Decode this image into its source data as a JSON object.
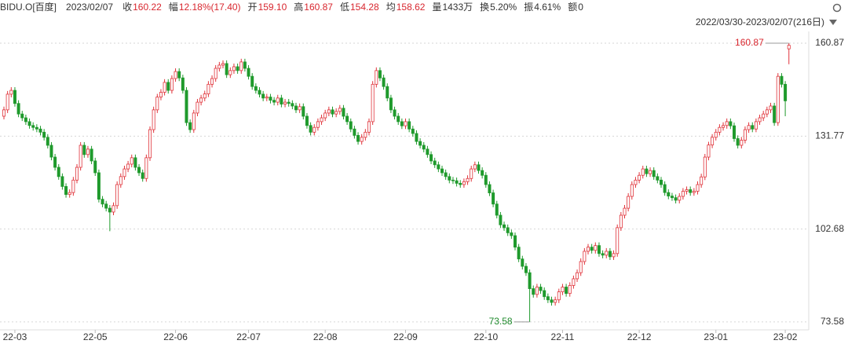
{
  "header": {
    "symbol": "BIDU.O[百度]",
    "date": "2023/02/07",
    "fields": [
      {
        "label": "收",
        "value": "160.22"
      },
      {
        "label": "幅",
        "value": "12.18%(17.40)"
      },
      {
        "label": "开",
        "value": "159.10"
      },
      {
        "label": "高",
        "value": "160.87"
      },
      {
        "label": "低",
        "value": "154.28"
      },
      {
        "label": "均",
        "value": "158.62"
      },
      {
        "label": "量",
        "value": "1433万"
      },
      {
        "label": "换",
        "value": "5.20%"
      },
      {
        "label": "振",
        "value": "4.61%"
      },
      {
        "label": "额",
        "value": "0"
      }
    ]
  },
  "chart_data": {
    "type": "candlestick",
    "subtitle": "2022/03/30-2023/02/07(216日)",
    "up_color": "#e0333a",
    "down_color": "#1f9a2c",
    "ylim": [
      71.1,
      164.56
    ],
    "yticks": [
      160.87,
      131.77,
      102.68,
      73.58
    ],
    "grid": true,
    "xticks": [
      {
        "value": 3,
        "label": "22-03"
      },
      {
        "value": 25,
        "label": "22-05"
      },
      {
        "value": 47,
        "label": "22-06"
      },
      {
        "value": 67,
        "label": "22-07"
      },
      {
        "value": 88,
        "label": "22-08"
      },
      {
        "value": 110,
        "label": "22-09"
      },
      {
        "value": 132,
        "label": "22-10"
      },
      {
        "value": 153,
        "label": "22-11"
      },
      {
        "value": 174,
        "label": "22-12"
      },
      {
        "value": 195,
        "label": "23-01"
      },
      {
        "value": 214,
        "label": "23-02"
      }
    ],
    "open": [
      138.0,
      140.0,
      144.9,
      146.1,
      142.0,
      138.7,
      137.5,
      136.3,
      135.1,
      134.5,
      134.0,
      133.0,
      131.4,
      128.9,
      125.2,
      122.0,
      119.1,
      116.0,
      113.5,
      114.1,
      118.0,
      122.0,
      128.9,
      126.0,
      127.7,
      124.0,
      120.3,
      112.0,
      110.5,
      109.2,
      108.0,
      110.0,
      116.6,
      119.1,
      121.5,
      123.0,
      125.0,
      122.0,
      120.3,
      118.5,
      125.0,
      133.8,
      140.0,
      144.0,
      145.5,
      148.6,
      146.1,
      149.8,
      152.0,
      150.0,
      146.1,
      136.0,
      133.8,
      139.0,
      142.4,
      143.7,
      145.0,
      148.0,
      149.8,
      153.0,
      154.0,
      154.5,
      151.0,
      152.3,
      153.5,
      152.3,
      155.0,
      153.0,
      150.5,
      147.3,
      146.1,
      144.9,
      143.7,
      144.0,
      143.0,
      142.4,
      143.7,
      141.8,
      142.4,
      142.0,
      141.2,
      140.0,
      141.0,
      138.0,
      135.1,
      133.0,
      134.5,
      136.3,
      137.5,
      139.0,
      140.0,
      138.7,
      139.5,
      140.5,
      138.0,
      136.3,
      134.0,
      132.0,
      130.1,
      131.4,
      133.0,
      136.3,
      148.0,
      152.3,
      150.0,
      147.3,
      143.7,
      140.0,
      138.0,
      136.3,
      135.0,
      136.3,
      134.0,
      132.6,
      130.1,
      128.9,
      127.7,
      126.0,
      124.0,
      122.8,
      121.5,
      120.3,
      119.1,
      118.0,
      117.8,
      117.0,
      116.6,
      117.5,
      118.5,
      121.5,
      122.8,
      121.0,
      119.5,
      116.6,
      114.0,
      110.5,
      107.0,
      104.0,
      103.1,
      101.5,
      100.6,
      97.0,
      93.3,
      91.0,
      89.0,
      84.0,
      82.2,
      84.5,
      83.4,
      81.5,
      80.5,
      79.7,
      80.5,
      83.0,
      84.5,
      82.5,
      85.0,
      87.1,
      89.0,
      92.5,
      95.7,
      97.0,
      96.0,
      97.5,
      95.0,
      94.5,
      95.7,
      94.0,
      95.0,
      103.1,
      107.0,
      109.2,
      112.9,
      116.6,
      118.0,
      119.5,
      121.5,
      120.0,
      121.0,
      119.1,
      118.0,
      116.6,
      114.1,
      113.0,
      112.5,
      111.7,
      112.9,
      114.5,
      115.0,
      114.1,
      114.5,
      116.6,
      119.0,
      125.2,
      129.0,
      131.4,
      133.0,
      134.5,
      135.1,
      136.3,
      135.0,
      131.0,
      128.9,
      130.5,
      133.8,
      135.1,
      134.0,
      136.3,
      137.5,
      138.7,
      140.0,
      141.2,
      136.0,
      150.5,
      148.0,
      159.1
    ],
    "high": [
      141.0,
      145.9,
      147.1,
      147.1,
      143.0,
      139.7,
      138.5,
      137.3,
      136.1,
      135.5,
      135.0,
      134.0,
      132.4,
      129.9,
      126.2,
      123.0,
      120.1,
      117.0,
      115.1,
      119.0,
      123.0,
      129.9,
      129.9,
      128.7,
      128.7,
      125.0,
      121.3,
      113.0,
      111.5,
      110.2,
      111.0,
      117.6,
      120.1,
      122.5,
      124.0,
      126.0,
      126.0,
      123.0,
      121.3,
      126.0,
      134.8,
      141.0,
      145.0,
      146.5,
      149.6,
      149.6,
      150.8,
      153.0,
      153.0,
      151.0,
      147.1,
      137.0,
      140.0,
      143.4,
      144.7,
      146.0,
      149.0,
      150.8,
      154.0,
      155.0,
      155.5,
      155.5,
      153.3,
      154.5,
      154.5,
      156.0,
      156.0,
      154.0,
      151.5,
      148.3,
      147.1,
      145.9,
      145.0,
      145.0,
      144.0,
      144.7,
      144.7,
      143.4,
      143.4,
      143.0,
      142.2,
      142.0,
      142.0,
      139.0,
      136.1,
      135.5,
      137.3,
      138.5,
      140.0,
      141.0,
      141.0,
      140.5,
      141.5,
      141.5,
      139.0,
      137.3,
      135.0,
      133.0,
      132.4,
      134.0,
      137.3,
      149.0,
      153.3,
      153.3,
      151.0,
      148.3,
      144.7,
      141.0,
      139.0,
      137.3,
      137.3,
      137.3,
      135.0,
      133.6,
      131.1,
      129.9,
      128.7,
      127.0,
      125.0,
      123.8,
      122.5,
      121.3,
      120.1,
      119.0,
      118.8,
      118.0,
      118.5,
      119.5,
      122.5,
      123.8,
      123.8,
      122.0,
      120.5,
      117.6,
      115.0,
      111.5,
      108.0,
      105.0,
      104.1,
      102.5,
      101.6,
      98.0,
      94.3,
      92.0,
      90.0,
      85.0,
      85.5,
      85.5,
      84.4,
      82.5,
      81.5,
      81.5,
      84.0,
      85.5,
      85.5,
      86.0,
      88.1,
      90.0,
      93.5,
      96.7,
      98.0,
      98.0,
      98.5,
      98.5,
      96.0,
      96.7,
      96.7,
      96.0,
      104.1,
      108.0,
      110.2,
      113.9,
      117.6,
      119.0,
      120.5,
      122.5,
      122.5,
      122.0,
      122.0,
      120.1,
      119.0,
      117.6,
      115.1,
      114.0,
      113.5,
      113.9,
      115.5,
      116.0,
      116.0,
      115.5,
      117.6,
      120.0,
      126.2,
      130.0,
      132.4,
      134.0,
      135.5,
      136.1,
      137.3,
      137.3,
      136.0,
      132.0,
      131.5,
      134.8,
      136.1,
      136.1,
      137.3,
      138.5,
      139.7,
      141.0,
      142.2,
      142.2,
      151.5,
      151.5,
      149.0,
      160.87
    ],
    "low": [
      137.0,
      139.0,
      143.9,
      141.0,
      137.7,
      136.5,
      135.3,
      134.1,
      133.5,
      133.0,
      132.0,
      130.4,
      127.9,
      124.2,
      121.0,
      118.1,
      115.0,
      112.5,
      112.5,
      113.1,
      117.0,
      121.0,
      125.0,
      125.0,
      123.0,
      119.3,
      111.0,
      109.5,
      108.2,
      102.0,
      107.0,
      109.0,
      115.6,
      118.1,
      120.5,
      122.0,
      121.0,
      119.3,
      117.5,
      117.5,
      124.0,
      132.8,
      139.0,
      143.0,
      144.5,
      145.1,
      145.1,
      148.8,
      149.0,
      145.1,
      135.0,
      132.8,
      132.8,
      138.0,
      141.4,
      142.7,
      144.0,
      147.0,
      148.8,
      152.0,
      153.0,
      150.0,
      150.0,
      151.3,
      151.3,
      151.3,
      152.0,
      149.5,
      146.3,
      145.1,
      143.9,
      142.7,
      142.7,
      142.0,
      141.4,
      141.4,
      140.8,
      140.8,
      141.0,
      140.2,
      139.0,
      139.0,
      137.0,
      134.1,
      132.0,
      132.0,
      133.5,
      135.3,
      136.5,
      138.0,
      137.7,
      137.7,
      138.5,
      137.0,
      135.3,
      133.0,
      131.0,
      129.1,
      129.1,
      130.4,
      132.0,
      135.3,
      147.0,
      149.0,
      146.3,
      142.7,
      139.0,
      137.0,
      135.3,
      134.0,
      134.0,
      133.0,
      131.6,
      129.1,
      127.9,
      126.7,
      125.0,
      123.0,
      121.8,
      120.5,
      119.3,
      118.1,
      117.0,
      116.8,
      116.0,
      115.6,
      115.6,
      116.5,
      117.5,
      120.5,
      120.0,
      118.5,
      115.6,
      113.0,
      109.5,
      106.0,
      103.0,
      102.1,
      100.5,
      99.6,
      96.0,
      92.3,
      90.0,
      88.0,
      73.58,
      81.2,
      81.2,
      82.4,
      80.5,
      79.5,
      78.7,
      78.7,
      79.5,
      82.0,
      81.5,
      81.5,
      84.0,
      86.1,
      88.0,
      91.5,
      94.7,
      95.0,
      95.0,
      94.0,
      93.5,
      93.5,
      93.0,
      93.0,
      94.0,
      102.1,
      106.0,
      108.2,
      111.9,
      115.6,
      117.0,
      118.5,
      119.0,
      119.0,
      118.1,
      117.0,
      115.6,
      113.1,
      112.0,
      111.5,
      110.7,
      110.7,
      111.9,
      113.5,
      113.1,
      113.1,
      113.5,
      115.6,
      118.0,
      124.2,
      128.0,
      130.4,
      132.0,
      133.5,
      134.1,
      134.0,
      130.0,
      127.9,
      127.9,
      129.5,
      132.8,
      133.0,
      133.0,
      135.3,
      136.5,
      137.7,
      139.0,
      135.0,
      135.0,
      147.0,
      138.0,
      154.28
    ],
    "close": [
      140.0,
      144.9,
      146.1,
      142.0,
      138.7,
      137.5,
      136.3,
      135.1,
      134.5,
      134.0,
      133.0,
      131.4,
      128.9,
      125.2,
      122.0,
      119.1,
      116.0,
      113.5,
      114.1,
      118.0,
      122.0,
      128.9,
      126.0,
      127.7,
      124.0,
      120.3,
      112.0,
      110.5,
      109.2,
      108.0,
      110.0,
      116.6,
      119.1,
      121.5,
      123.0,
      125.0,
      122.0,
      120.3,
      118.5,
      125.0,
      133.8,
      140.0,
      144.0,
      145.5,
      148.6,
      146.1,
      149.8,
      152.0,
      150.0,
      146.1,
      136.0,
      133.8,
      139.0,
      142.4,
      143.7,
      145.0,
      148.0,
      149.8,
      153.0,
      154.0,
      154.5,
      151.0,
      152.3,
      153.5,
      152.3,
      155.0,
      153.0,
      150.5,
      147.3,
      146.1,
      144.9,
      143.7,
      144.0,
      143.0,
      142.4,
      143.7,
      141.8,
      142.4,
      142.0,
      141.2,
      140.0,
      141.0,
      138.0,
      135.1,
      133.0,
      134.5,
      136.3,
      137.5,
      139.0,
      140.0,
      138.7,
      139.5,
      140.5,
      138.0,
      136.3,
      134.0,
      132.0,
      130.1,
      131.4,
      133.0,
      136.3,
      148.0,
      152.3,
      150.0,
      147.3,
      143.7,
      140.0,
      138.0,
      136.3,
      135.0,
      136.3,
      134.0,
      132.6,
      130.1,
      128.9,
      127.7,
      126.0,
      124.0,
      122.8,
      121.5,
      120.3,
      119.1,
      118.0,
      117.8,
      117.0,
      116.6,
      117.5,
      118.5,
      121.5,
      122.8,
      121.0,
      119.5,
      116.6,
      114.0,
      110.5,
      107.0,
      104.0,
      103.1,
      101.5,
      100.6,
      97.0,
      93.3,
      91.0,
      89.0,
      84.0,
      82.2,
      84.5,
      83.4,
      81.5,
      80.5,
      79.7,
      80.5,
      83.0,
      84.5,
      82.5,
      85.0,
      87.1,
      89.0,
      92.5,
      95.7,
      97.0,
      96.0,
      97.5,
      95.0,
      94.5,
      95.7,
      94.0,
      95.0,
      103.1,
      107.0,
      109.2,
      112.9,
      116.6,
      118.0,
      119.5,
      121.5,
      120.0,
      121.0,
      119.1,
      118.0,
      116.6,
      114.1,
      113.0,
      112.5,
      111.7,
      112.9,
      114.5,
      115.0,
      114.1,
      114.5,
      116.6,
      119.0,
      125.2,
      129.0,
      131.4,
      133.0,
      134.5,
      135.1,
      136.3,
      135.0,
      131.0,
      128.9,
      130.5,
      133.8,
      135.1,
      134.0,
      136.3,
      137.5,
      138.7,
      140.0,
      141.2,
      136.0,
      150.5,
      148.0,
      142.82,
      160.22
    ]
  }
}
